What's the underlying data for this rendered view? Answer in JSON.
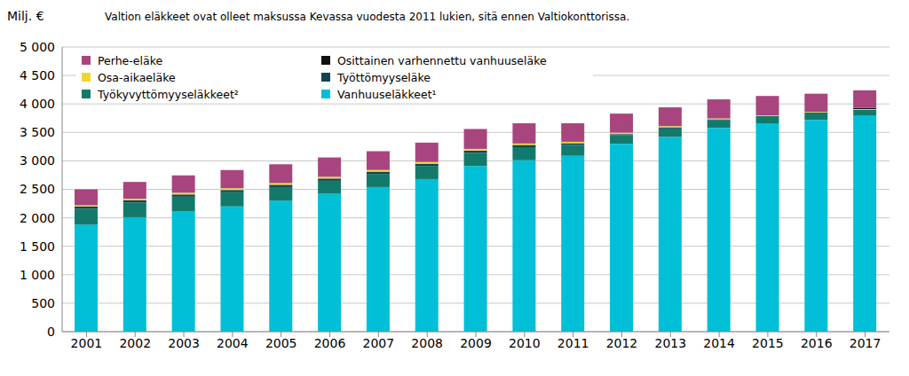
{
  "chart_data": {
    "type": "bar",
    "title": "Valtion eläkkeet ovat olleet maksussa Kevassa vuodesta 2011 lukien, sitä ennen Valtiokonttorissa.",
    "y_label": "Milj. €",
    "categories": [
      "2001",
      "2002",
      "2003",
      "2004",
      "2005",
      "2006",
      "2007",
      "2008",
      "2009",
      "2010",
      "2011",
      "2012",
      "2013",
      "2014",
      "2015",
      "2016",
      "2017"
    ],
    "series": [
      {
        "name": "Perhe-eläke",
        "color": "#a8457e",
        "values": [
          280,
          295,
          305,
          320,
          330,
          340,
          330,
          340,
          350,
          355,
          325,
          335,
          330,
          335,
          340,
          320,
          310
        ]
      },
      {
        "name": "Osittainen varhennettu vanhuuseläke",
        "color": "#111111",
        "values": [
          0,
          0,
          0,
          0,
          0,
          0,
          0,
          0,
          0,
          0,
          0,
          0,
          0,
          0,
          0,
          0,
          20
        ]
      },
      {
        "name": "Osa-aikaeläke",
        "color": "#f0d630",
        "values": [
          20,
          25,
          30,
          30,
          30,
          30,
          30,
          30,
          30,
          25,
          25,
          25,
          20,
          15,
          10,
          10,
          10
        ]
      },
      {
        "name": "Työttömyyseläke",
        "color": "#0d4455",
        "values": [
          40,
          40,
          40,
          40,
          40,
          40,
          40,
          40,
          40,
          40,
          30,
          20,
          20,
          10,
          0,
          0,
          0
        ]
      },
      {
        "name": "Työkyvyttömyyseläkkeet²",
        "color": "#137a6b",
        "values": [
          280,
          260,
          260,
          250,
          240,
          230,
          230,
          230,
          230,
          230,
          190,
          150,
          150,
          140,
          130,
          130,
          100
        ]
      },
      {
        "name": "Vanhuuseläkkeet¹",
        "color": "#00bfd6",
        "values": [
          1880,
          2010,
          2110,
          2200,
          2300,
          2420,
          2540,
          2680,
          2910,
          3010,
          3090,
          3300,
          3420,
          3580,
          3660,
          3720,
          3800
        ]
      }
    ],
    "ylim": [
      0,
      5000
    ],
    "yticks": [
      0,
      500,
      {
        "value": 1000,
        "label": "1 000"
      },
      {
        "value": 1500,
        "label": "1 500"
      },
      {
        "value": 2000,
        "label": "2 000"
      },
      {
        "value": 2500,
        "label": "2 500"
      },
      {
        "value": 3000,
        "label": "3 000"
      },
      {
        "value": 3500,
        "label": "3 500"
      },
      {
        "value": 4000,
        "label": "4 000"
      },
      {
        "value": 4500,
        "label": "4 500"
      },
      {
        "value": 5000,
        "label": "5 000"
      }
    ],
    "stacked": true,
    "grid": true,
    "legend": "top-left"
  }
}
